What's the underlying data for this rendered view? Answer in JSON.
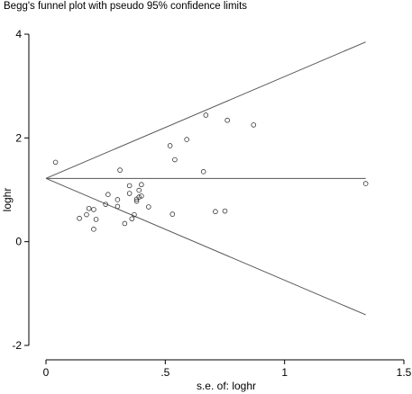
{
  "chart_data": {
    "type": "scatter",
    "title": "Begg's funnel plot with pseudo 95% confidence limits",
    "xlabel": "s.e. of: loghr",
    "ylabel": "loghr",
    "xlim": [
      0,
      1.5
    ],
    "ylim": [
      -2,
      4
    ],
    "xticks": [
      0,
      0.5,
      1,
      1.5
    ],
    "xtick_labels": [
      "0",
      ".5",
      "1",
      "1.5"
    ],
    "yticks": [
      -2,
      0,
      2,
      4
    ],
    "ytick_labels": [
      "-2",
      "0",
      "2",
      "4"
    ],
    "grid": false,
    "pooled_estimate": 1.22,
    "limit_lines": [
      {
        "x": [
          0,
          1.34
        ],
        "y": [
          1.22,
          3.85
        ]
      },
      {
        "x": [
          0,
          1.34
        ],
        "y": [
          1.22,
          1.22
        ]
      },
      {
        "x": [
          0,
          1.34
        ],
        "y": [
          1.22,
          -1.41
        ]
      }
    ],
    "points": [
      {
        "x": 0.04,
        "y": 1.53
      },
      {
        "x": 0.14,
        "y": 0.45
      },
      {
        "x": 0.17,
        "y": 0.52
      },
      {
        "x": 0.18,
        "y": 0.64
      },
      {
        "x": 0.2,
        "y": 0.62
      },
      {
        "x": 0.2,
        "y": 0.24
      },
      {
        "x": 0.21,
        "y": 0.43
      },
      {
        "x": 0.25,
        "y": 0.72
      },
      {
        "x": 0.26,
        "y": 0.91
      },
      {
        "x": 0.3,
        "y": 0.68
      },
      {
        "x": 0.3,
        "y": 0.81
      },
      {
        "x": 0.31,
        "y": 1.38
      },
      {
        "x": 0.33,
        "y": 0.35
      },
      {
        "x": 0.35,
        "y": 1.08
      },
      {
        "x": 0.35,
        "y": 0.93
      },
      {
        "x": 0.36,
        "y": 0.44
      },
      {
        "x": 0.37,
        "y": 0.52
      },
      {
        "x": 0.38,
        "y": 0.82
      },
      {
        "x": 0.38,
        "y": 0.78
      },
      {
        "x": 0.39,
        "y": 0.99
      },
      {
        "x": 0.39,
        "y": 0.86
      },
      {
        "x": 0.4,
        "y": 0.88
      },
      {
        "x": 0.4,
        "y": 1.1
      },
      {
        "x": 0.43,
        "y": 0.67
      },
      {
        "x": 0.52,
        "y": 1.85
      },
      {
        "x": 0.53,
        "y": 0.53
      },
      {
        "x": 0.54,
        "y": 1.58
      },
      {
        "x": 0.59,
        "y": 1.97
      },
      {
        "x": 0.66,
        "y": 1.35
      },
      {
        "x": 0.67,
        "y": 2.44
      },
      {
        "x": 0.71,
        "y": 0.58
      },
      {
        "x": 0.75,
        "y": 0.59
      },
      {
        "x": 0.76,
        "y": 2.34
      },
      {
        "x": 0.87,
        "y": 2.25
      },
      {
        "x": 1.34,
        "y": 1.12
      }
    ]
  }
}
